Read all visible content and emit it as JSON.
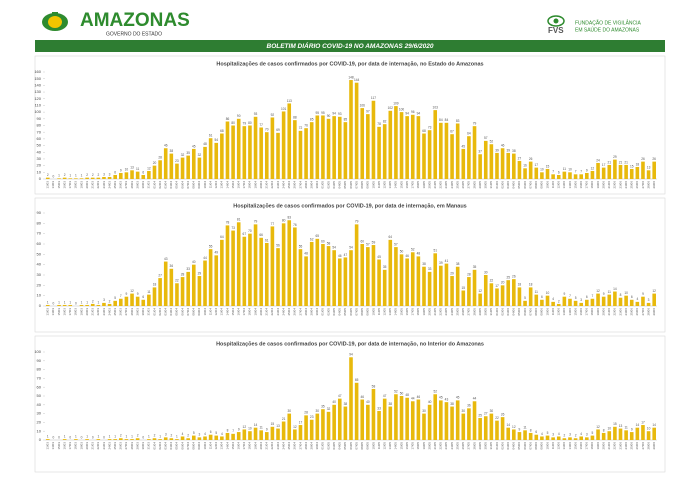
{
  "header": {
    "brand": "AMAZONAS",
    "brand_sub": "GOVERNO DO ESTADO",
    "org": "FVS",
    "org_line1": "FUNDAÇÃO DE VIGILÂNCIA",
    "org_line2": "EM SAÚDE DO AMAZONAS",
    "banner": "BOLETIM DIÁRIO COVID-19 NO AMAZONAS 29/6/2020"
  },
  "chart_data": [
    {
      "type": "bar",
      "title": "Hospitalizações de casos confirmados por COVID-19, por data de internação, no Estado do Amazonas",
      "color": "#e8b90c",
      "ylim": [
        0,
        160
      ],
      "yticks": [
        0,
        10,
        20,
        30,
        40,
        50,
        60,
        70,
        80,
        90,
        100,
        110,
        120,
        130,
        140,
        150,
        160
      ],
      "grid": false,
      "categories": [
        "13/03",
        "14/03",
        "15/03",
        "16/03",
        "17/03",
        "18/03",
        "19/03",
        "20/03",
        "21/03",
        "22/03",
        "23/03",
        "24/03",
        "25/03",
        "26/03",
        "27/03",
        "28/03",
        "29/03",
        "30/03",
        "31/03",
        "01/04",
        "02/04",
        "03/04",
        "04/04",
        "05/04",
        "06/04",
        "07/04",
        "08/04",
        "09/04",
        "10/04",
        "11/04",
        "12/04",
        "13/04",
        "14/04",
        "15/04",
        "16/04",
        "17/04",
        "18/04",
        "19/04",
        "20/04",
        "21/04",
        "22/04",
        "23/04",
        "24/04",
        "25/04",
        "26/04",
        "27/04",
        "28/04",
        "29/04",
        "30/04",
        "01/05",
        "02/05",
        "03/05",
        "04/05",
        "05/05",
        "06/05",
        "07/05",
        "08/05",
        "09/05",
        "10/05",
        "11/05",
        "12/05",
        "13/05",
        "14/05",
        "15/05",
        "16/05",
        "17/05",
        "18/05",
        "19/05",
        "20/05",
        "21/05",
        "22/05",
        "23/05",
        "24/05",
        "25/05",
        "26/05",
        "27/05",
        "28/05",
        "29/05",
        "30/05",
        "31/05",
        "01/06",
        "02/06",
        "03/06",
        "04/06",
        "05/06",
        "06/06",
        "07/06",
        "08/06",
        "09/06",
        "10/06",
        "11/06",
        "12/06",
        "13/06",
        "14/06",
        "15/06",
        "16/06",
        "17/06",
        "18/06",
        "19/06",
        "20/06",
        "21/06",
        "22/06",
        "23/06",
        "24/06",
        "25/06",
        "26/06",
        "27/06",
        "28/06",
        "29/06"
      ],
      "values": [
        2,
        0,
        1,
        2,
        1,
        1,
        1,
        2,
        2,
        2,
        3,
        3,
        6,
        9,
        10,
        13,
        11,
        6,
        12,
        20,
        28,
        46,
        38,
        23,
        32,
        35,
        45,
        32,
        48,
        61,
        54,
        68,
        86,
        80,
        90,
        79,
        80,
        93,
        77,
        70,
        92,
        69,
        101,
        113,
        88,
        72,
        76,
        85,
        95,
        95,
        90,
        94,
        93,
        85,
        148,
        144,
        106,
        97,
        117,
        78,
        82,
        102,
        109,
        100,
        94,
        96,
        94,
        68,
        73,
        103,
        84,
        84,
        67,
        83,
        45,
        64,
        79,
        37,
        57,
        52,
        39,
        46,
        39,
        38,
        27,
        16,
        26,
        17,
        10,
        15,
        7,
        6,
        11,
        10,
        7,
        7,
        9,
        12,
        24,
        17,
        21,
        29,
        21,
        21,
        15,
        18,
        26,
        13,
        26
      ]
    },
    {
      "type": "bar",
      "title": "Hospitalizações de casos confirmados por COVID-19, por data de internação, em Manaus",
      "color": "#e8b90c",
      "ylim": [
        0,
        90
      ],
      "yticks": [
        0,
        10,
        20,
        30,
        40,
        50,
        60,
        70,
        80,
        90
      ],
      "grid": false,
      "categories": [
        "13/03",
        "14/03",
        "15/03",
        "16/03",
        "17/03",
        "18/03",
        "19/03",
        "20/03",
        "21/03",
        "22/03",
        "23/03",
        "24/03",
        "25/03",
        "26/03",
        "27/03",
        "28/03",
        "29/03",
        "30/03",
        "31/03",
        "01/04",
        "02/04",
        "03/04",
        "04/04",
        "05/04",
        "06/04",
        "07/04",
        "08/04",
        "09/04",
        "10/04",
        "11/04",
        "12/04",
        "13/04",
        "14/04",
        "15/04",
        "16/04",
        "17/04",
        "18/04",
        "19/04",
        "20/04",
        "21/04",
        "22/04",
        "23/04",
        "24/04",
        "25/04",
        "26/04",
        "27/04",
        "28/04",
        "29/04",
        "30/04",
        "01/05",
        "02/05",
        "03/05",
        "04/05",
        "05/05",
        "06/05",
        "07/05",
        "08/05",
        "09/05",
        "10/05",
        "11/05",
        "12/05",
        "13/05",
        "14/05",
        "15/05",
        "16/05",
        "17/05",
        "18/05",
        "19/05",
        "20/05",
        "21/05",
        "22/05",
        "23/05",
        "24/05",
        "25/05",
        "26/05",
        "27/05",
        "28/05",
        "29/05",
        "30/05",
        "31/05",
        "01/06",
        "02/06",
        "03/06",
        "04/06",
        "05/06",
        "06/06",
        "07/06",
        "08/06",
        "09/06",
        "10/06",
        "11/06",
        "12/06",
        "13/06",
        "14/06",
        "15/06",
        "16/06",
        "17/06",
        "18/06",
        "19/06",
        "20/06",
        "21/06",
        "22/06",
        "23/06",
        "24/06",
        "25/06",
        "26/06",
        "27/06",
        "28/06",
        "29/06"
      ],
      "values": [
        1,
        0,
        1,
        1,
        1,
        0,
        1,
        1,
        2,
        1,
        3,
        2,
        5,
        7,
        9,
        12,
        9,
        6,
        11,
        18,
        27,
        43,
        36,
        22,
        28,
        33,
        40,
        29,
        44,
        55,
        49,
        64,
        78,
        73,
        81,
        67,
        70,
        79,
        66,
        61,
        77,
        56,
        80,
        83,
        76,
        55,
        48,
        62,
        65,
        60,
        58,
        54,
        46,
        47,
        54,
        79,
        60,
        57,
        59,
        45,
        35,
        64,
        57,
        50,
        46,
        52,
        48,
        38,
        33,
        51,
        39,
        41,
        29,
        38,
        15,
        28,
        35,
        12,
        30,
        22,
        17,
        20,
        25,
        26,
        18,
        5,
        18,
        11,
        6,
        10,
        4,
        2,
        9,
        7,
        5,
        3,
        6,
        7,
        12,
        9,
        11,
        14,
        8,
        10,
        6,
        4,
        9,
        3,
        12
      ]
    },
    {
      "type": "bar",
      "title": "Hospitalizações  de casos confirmados por COVID-19, por data de internação, no Interior do Amazonas",
      "color": "#e8b90c",
      "ylim": [
        0,
        100
      ],
      "yticks": [
        0,
        10,
        20,
        30,
        40,
        50,
        60,
        70,
        80,
        90,
        100
      ],
      "grid": false,
      "categories": [
        "13/03",
        "14/03",
        "15/03",
        "16/03",
        "17/03",
        "18/03",
        "19/03",
        "20/03",
        "21/03",
        "22/03",
        "23/03",
        "24/03",
        "25/03",
        "26/03",
        "27/03",
        "28/03",
        "29/03",
        "30/03",
        "31/03",
        "01/04",
        "02/04",
        "03/04",
        "04/04",
        "05/04",
        "06/04",
        "07/04",
        "08/04",
        "09/04",
        "10/04",
        "11/04",
        "12/04",
        "13/04",
        "14/04",
        "15/04",
        "16/04",
        "17/04",
        "18/04",
        "19/04",
        "20/04",
        "21/04",
        "22/04",
        "23/04",
        "24/04",
        "25/04",
        "26/04",
        "27/04",
        "28/04",
        "29/04",
        "30/04",
        "01/05",
        "02/05",
        "03/05",
        "04/05",
        "05/05",
        "06/05",
        "07/05",
        "08/05",
        "09/05",
        "10/05",
        "11/05",
        "12/05",
        "13/05",
        "14/05",
        "15/05",
        "16/05",
        "17/05",
        "18/05",
        "19/05",
        "20/05",
        "21/05",
        "22/05",
        "23/05",
        "24/05",
        "25/05",
        "26/05",
        "27/05",
        "28/05",
        "29/05",
        "30/05",
        "31/05",
        "01/06",
        "02/06",
        "03/06",
        "04/06",
        "05/06",
        "06/06",
        "07/06",
        "08/06",
        "09/06",
        "10/06",
        "11/06",
        "12/06",
        "13/06",
        "14/06",
        "15/06",
        "16/06",
        "17/06",
        "18/06",
        "19/06",
        "20/06",
        "21/06",
        "22/06",
        "23/06",
        "24/06",
        "25/06",
        "26/06",
        "27/06",
        "28/06",
        "29/06"
      ],
      "values": [
        1,
        0,
        0,
        1,
        0,
        1,
        0,
        1,
        0,
        1,
        0,
        1,
        1,
        2,
        1,
        1,
        2,
        0,
        1,
        2,
        1,
        3,
        2,
        1,
        4,
        2,
        5,
        3,
        4,
        6,
        5,
        4,
        8,
        7,
        9,
        12,
        10,
        14,
        11,
        9,
        15,
        13,
        21,
        30,
        12,
        17,
        28,
        23,
        30,
        35,
        32,
        40,
        47,
        38,
        94,
        65,
        46,
        40,
        58,
        33,
        47,
        38,
        52,
        50,
        48,
        44,
        46,
        30,
        40,
        52,
        45,
        43,
        38,
        45,
        30,
        36,
        44,
        25,
        27,
        30,
        22,
        26,
        14,
        12,
        9,
        11,
        8,
        6,
        4,
        5,
        3,
        4,
        2,
        3,
        2,
        4,
        3,
        5,
        12,
        8,
        10,
        15,
        13,
        11,
        9,
        14,
        17,
        10,
        14
      ]
    }
  ]
}
